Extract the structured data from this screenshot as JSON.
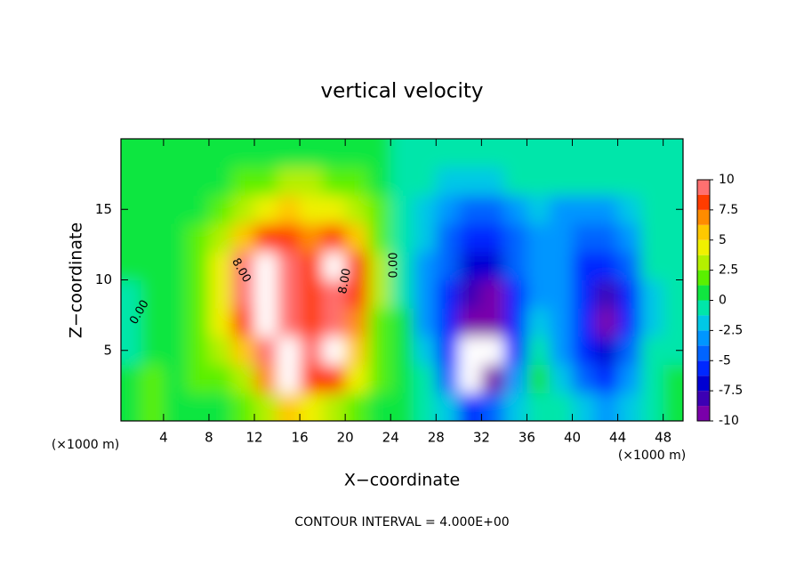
{
  "chart_data": {
    "type": "contour",
    "title": "vertical velocity",
    "x_label": "X−coordinate",
    "y_label": "Z−coordinate",
    "x_unit": "(×1000 m)",
    "footnote": "CONTOUR INTERVAL = 4.000E+00",
    "contour_labels": [
      "8.00",
      "8.00",
      "0.00",
      "0.00"
    ],
    "xlim": [
      0.25,
      49.75
    ],
    "ylim": [
      0,
      20
    ],
    "xticks": [
      4,
      8,
      12,
      16,
      20,
      24,
      28,
      32,
      36,
      40,
      44,
      48
    ],
    "yticks": [
      5,
      10,
      15
    ],
    "x": [
      1,
      3,
      5,
      7,
      9,
      11,
      13,
      15,
      17,
      19,
      21,
      23,
      25,
      27,
      29,
      31,
      33,
      35,
      37,
      39,
      41,
      43,
      45,
      47,
      49
    ],
    "z": [
      1,
      3,
      5,
      7,
      9,
      11,
      13,
      15,
      17,
      19
    ],
    "values": [
      [
        0.5,
        2.5,
        1,
        0.5,
        1,
        1.5,
        3,
        6,
        4,
        3,
        1.5,
        0.8,
        0.5,
        0,
        -2,
        -5,
        -4,
        -1.5,
        0,
        -0.5,
        -1.5,
        -2.5,
        -1.5,
        0,
        0.5
      ],
      [
        1,
        1.5,
        1,
        1.5,
        2,
        3,
        7,
        10.5,
        8,
        8,
        4,
        1.5,
        0.5,
        -1,
        -4,
        -10.5,
        -10,
        -3.5,
        0.5,
        -1.5,
        -4,
        -5,
        -3,
        -0.5,
        0.5
      ],
      [
        0,
        0.5,
        1,
        2,
        3,
        6,
        10,
        10.5,
        9,
        10.5,
        6,
        2,
        0.5,
        -2,
        -5,
        -10.5,
        -11,
        -5,
        -1,
        -2.5,
        -5,
        -7,
        -4,
        -1,
        0
      ],
      [
        -0.5,
        0.3,
        1,
        2,
        4,
        8,
        11,
        10,
        8,
        9.5,
        7.5,
        2.5,
        0.5,
        -2.5,
        -5,
        -9,
        -10,
        -5.5,
        -2,
        -3,
        -6,
        -9,
        -5,
        -1.5,
        0
      ],
      [
        0,
        0.3,
        0.8,
        2,
        5,
        9.5,
        11,
        10,
        8,
        10,
        8,
        3,
        0,
        -3,
        -5,
        -8,
        -9,
        -5,
        -2.5,
        -3,
        -6,
        -8,
        -5,
        -1.5,
        0
      ],
      [
        0.3,
        0.5,
        0.8,
        2,
        5,
        9,
        10.5,
        9,
        8.5,
        10.5,
        8,
        3,
        0,
        -2.5,
        -4.5,
        -7,
        -7,
        -4.5,
        -2.5,
        -3,
        -5,
        -6,
        -4,
        -1,
        0
      ],
      [
        0.5,
        0.5,
        0.8,
        1.5,
        3,
        6,
        8,
        8.5,
        7.5,
        8,
        6,
        2.5,
        0,
        -2,
        -4,
        -5.5,
        -5.5,
        -4,
        -2.5,
        -3.5,
        -4.5,
        -4.5,
        -3,
        -1,
        0
      ],
      [
        0.5,
        0.5,
        0.8,
        1,
        2,
        3.5,
        5,
        5.5,
        5,
        4.5,
        3,
        1.5,
        0,
        -1.5,
        -3,
        -4,
        -4,
        -3,
        -2,
        -2.5,
        -3,
        -3,
        -2,
        -1,
        0
      ],
      [
        0.5,
        0.5,
        0.5,
        0.8,
        1,
        1.5,
        2.5,
        3,
        3,
        2.5,
        1.5,
        0.8,
        0,
        -0.8,
        -1.5,
        -2,
        -1.5,
        -1,
        -0.8,
        -0.8,
        -0.8,
        -1,
        -1,
        -0.5,
        0
      ],
      [
        0.5,
        0.5,
        0.5,
        0.5,
        0.5,
        0.5,
        0.8,
        1,
        1,
        1,
        0.8,
        0.5,
        0,
        -0.5,
        -0.8,
        -0.8,
        -0.5,
        -0.5,
        -0.5,
        -0.3,
        -0.3,
        -0.3,
        -0.5,
        -0.3,
        0
      ]
    ],
    "levels": [
      -10,
      -8.75,
      -7.5,
      -6.25,
      -5,
      -3.75,
      -2.5,
      -1.25,
      0,
      1.25,
      2.5,
      3.75,
      5,
      6.25,
      7.5,
      8.75,
      10
    ],
    "colors": [
      "#7a00aa",
      "#3c00b4",
      "#0000d2",
      "#0028ff",
      "#0064ff",
      "#0096ff",
      "#00c8e6",
      "#00e6aa",
      "#10e640",
      "#5af000",
      "#b4f000",
      "#f0f000",
      "#ffc800",
      "#ff8c00",
      "#ff3c00",
      "#ff7070"
    ],
    "over_color": "#ffffff",
    "under_color": "#ffffff",
    "colorbar_ticks": [
      10,
      7.5,
      5,
      2.5,
      0,
      -2.5,
      -5,
      -7.5,
      -10
    ]
  }
}
